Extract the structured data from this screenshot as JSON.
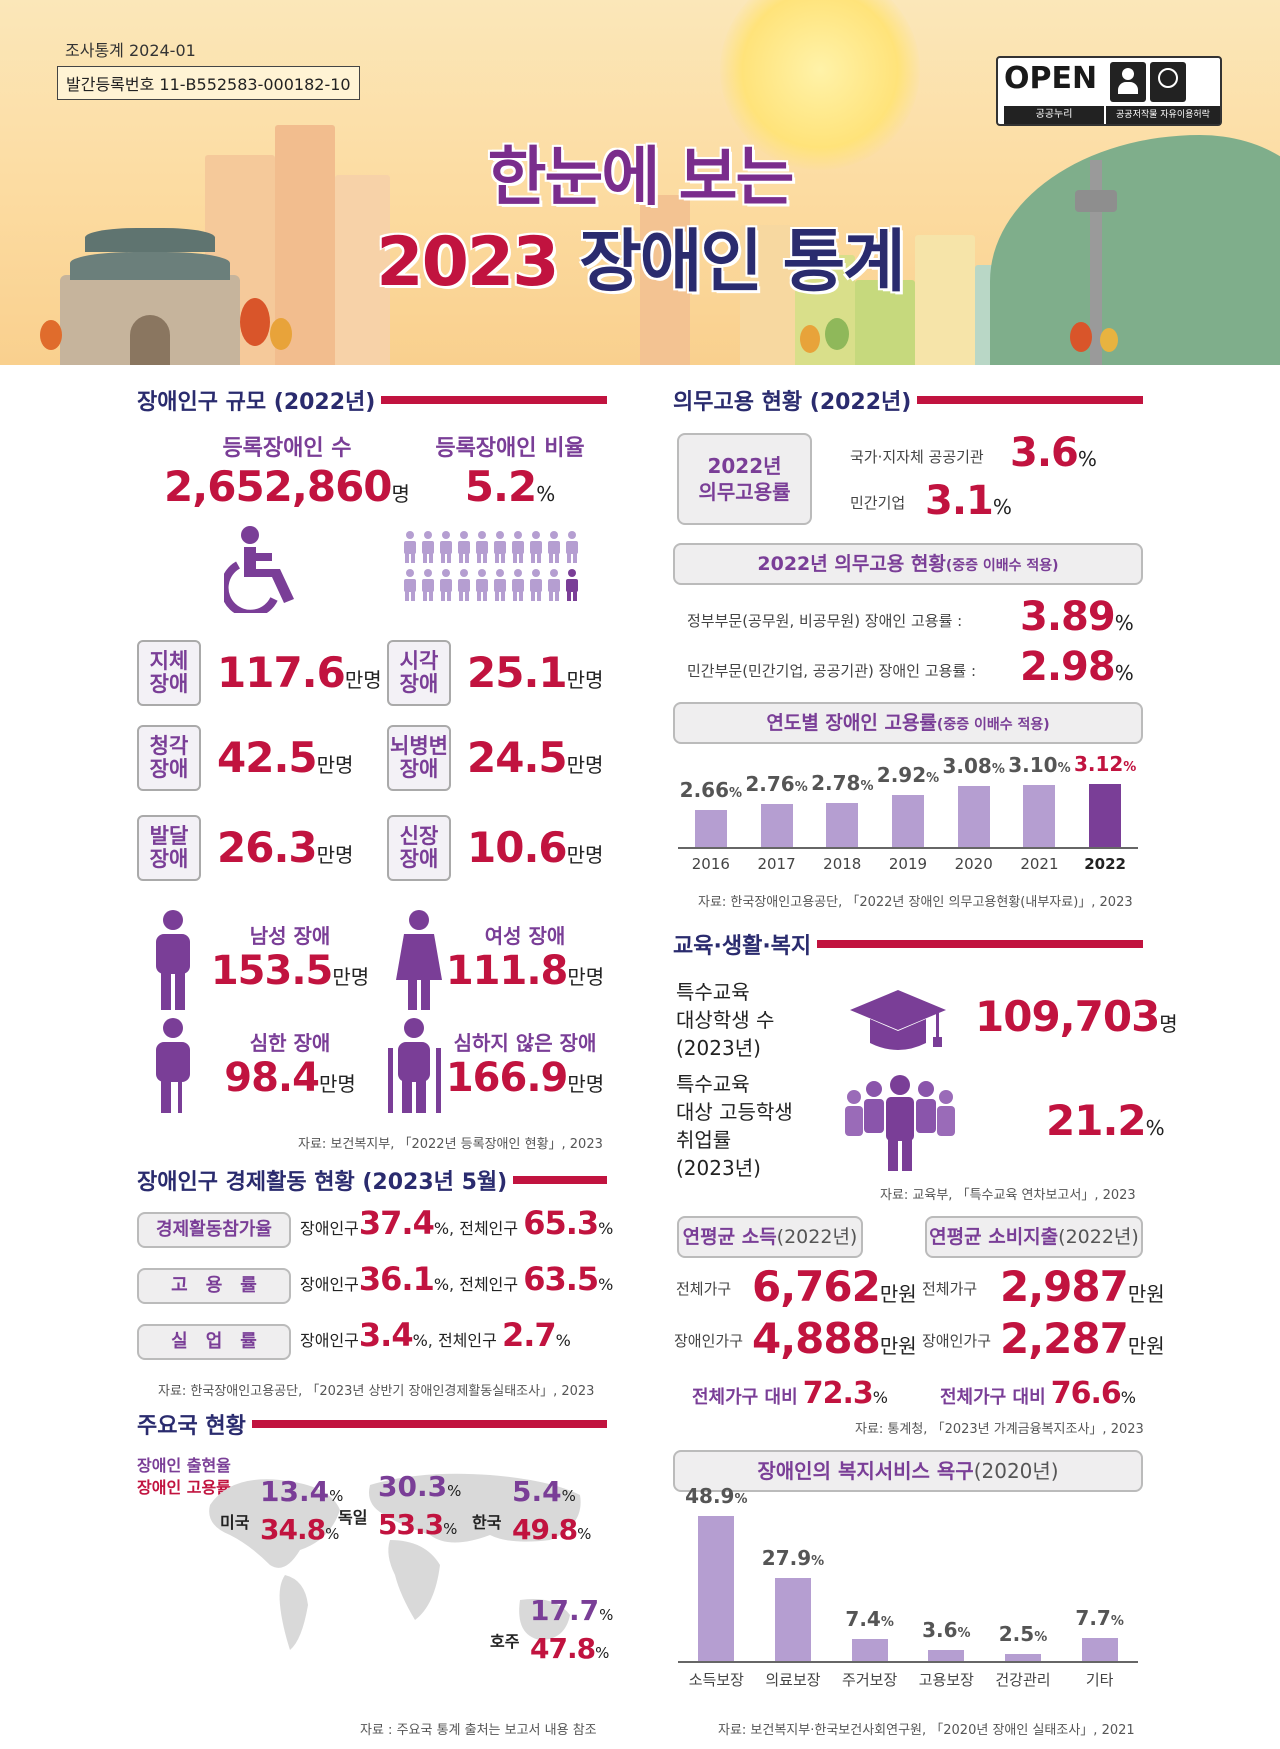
{
  "meta": {
    "series": "조사통계 2024-01",
    "reg": "발간등록번호 11-B552583-000182-10",
    "open": "OPEN",
    "open_sub1": "공공누리",
    "open_sub2": "공공저작물 자유이용허락",
    "open_b1": "출처표시",
    "open_b2": "상업용금지"
  },
  "title": {
    "line1": "한눈에 보는",
    "year": "2023",
    "rest": "장애인 통계"
  },
  "population": {
    "head": "장애인구 규모 (2022년)",
    "reg_label": "등록장애인 수",
    "reg_value": "2,652,860",
    "reg_unit": "명",
    "ratio_label": "등록장애인 비율",
    "ratio_value": "5.2",
    "ratio_unit": "%",
    "types": [
      {
        "tag1": "지체",
        "tag2": "장애",
        "value": "117.6",
        "unit": "만명"
      },
      {
        "tag1": "시각",
        "tag2": "장애",
        "value": "25.1",
        "unit": "만명"
      },
      {
        "tag1": "청각",
        "tag2": "장애",
        "value": "42.5",
        "unit": "만명"
      },
      {
        "tag1": "뇌병변",
        "tag2": "장애",
        "value": "24.5",
        "unit": "만명"
      },
      {
        "tag1": "발달",
        "tag2": "장애",
        "value": "26.3",
        "unit": "만명"
      },
      {
        "tag1": "신장",
        "tag2": "장애",
        "value": "10.6",
        "unit": "만명"
      }
    ],
    "male_label": "남성 장애",
    "male_value": "153.5",
    "female_label": "여성 장애",
    "female_value": "111.8",
    "severe_label": "심한 장애",
    "severe_value": "98.4",
    "mild_label": "심하지 않은 장애",
    "mild_value": "166.9",
    "unit": "만명",
    "source": "자료: 보건복지부, 「2022년 등록장애인 현황」, 2023"
  },
  "economic": {
    "head": "장애인구 경제활동 현황 (2023년 5월)",
    "rows": [
      {
        "tag": "경제활동참가율",
        "dis_label": "장애인구",
        "dis": "37.4",
        "all_label": "전체인구",
        "all": "65.3"
      },
      {
        "tag": "고　용　률",
        "dis_label": "장애인구",
        "dis": "36.1",
        "all_label": "전체인구",
        "all": "63.5"
      },
      {
        "tag": "실　업　률",
        "dis_label": "장애인구",
        "dis": "3.4",
        "all_label": "전체인구",
        "all": "2.7"
      }
    ],
    "pct": "%",
    "source": "자료: 한국장애인고용공단, 「2023년 상반기 장애인경제활동실태조사」, 2023"
  },
  "countries": {
    "head": "주요국 현황",
    "legend1": "장애인 출현율",
    "legend2": "장애인 고용률",
    "items": [
      {
        "name": "미국",
        "a": "13.4",
        "b": "34.8"
      },
      {
        "name": "독일",
        "a": "30.3",
        "b": "53.3"
      },
      {
        "name": "한국",
        "a": "5.4",
        "b": "49.8"
      },
      {
        "name": "호주",
        "a": "17.7",
        "b": "47.8"
      }
    ],
    "pct": "%",
    "source": "자료 : 주요국 통계 출처는 보고서 내용 참조"
  },
  "quota": {
    "head": "의무고용 현황 (2022년)",
    "box1": "2022년",
    "box2": "의무고용률",
    "pub_label": "국가·지자체 공공기관",
    "pub_value": "3.6",
    "priv_label": "민간기업",
    "priv_value": "3.1",
    "pct": "%",
    "status_head": "2022년 의무고용 현황",
    "status_sub": "(중증 이배수 적용)",
    "gov_label": "정부부문(공무원, 비공무원) 장애인 고용률 :",
    "gov_value": "3.89",
    "civ_label": "민간부문(민간기업, 공공기관) 장애인 고용률 :",
    "civ_value": "2.98",
    "trend_head": "연도별 장애인 고용률",
    "trend_sub": "(중증 이배수 적용)",
    "source": "자료: 한국장애인고용공단, 「2022년 장애인 의무고용현황(내부자료)」, 2023"
  },
  "chart_data": [
    {
      "type": "bar",
      "title": "연도별 장애인 고용률(중증 이배수 적용)",
      "categories": [
        "2016",
        "2017",
        "2018",
        "2019",
        "2020",
        "2021",
        "2022"
      ],
      "values": [
        2.66,
        2.76,
        2.78,
        2.92,
        3.08,
        3.1,
        3.12
      ],
      "labels": [
        "2.66",
        "2.76",
        "2.78",
        "2.92",
        "3.08",
        "3.10",
        "3.12"
      ],
      "unit": "%",
      "highlight": "2022",
      "colors": {
        "bar": "#b59ed1",
        "highlight": "#7a3e97"
      }
    },
    {
      "type": "bar",
      "title": "장애인의 복지서비스 욕구(2020년)",
      "categories": [
        "소득보장",
        "의료보장",
        "주거보장",
        "고용보장",
        "건강관리",
        "기타"
      ],
      "values": [
        48.9,
        27.9,
        7.4,
        3.6,
        2.5,
        7.7
      ],
      "labels": [
        "48.9",
        "27.9",
        "7.4",
        "3.6",
        "2.5",
        "7.7"
      ],
      "unit": "%",
      "colors": {
        "bar": "#b59ed1"
      }
    }
  ],
  "education": {
    "head": "교육·생활·복지",
    "s1": "특수교육",
    "s2": "대상학생 수",
    "s3": "(2023년)",
    "students": "109,703",
    "students_unit": "명",
    "e1": "특수교육",
    "e2": "대상 고등학생",
    "e3": "취업률",
    "e4": "(2023년)",
    "employ": "21.2",
    "employ_unit": "%",
    "source": "자료: 교육부, 「특수교육 연차보고서」, 2023"
  },
  "income": {
    "head": "연평균 소득",
    "head_yr": "(2022년)",
    "all_label": "전체가구",
    "all": "6,762",
    "dis_label": "장애인가구",
    "dis": "4,888",
    "unit": "만원",
    "ratio_label": "전체가구 대비",
    "ratio": "72.3"
  },
  "spend": {
    "head": "연평균 소비지출",
    "head_yr": "(2022년)",
    "all_label": "전체가구",
    "all": "2,987",
    "dis_label": "장애인가구",
    "dis": "2,287",
    "unit": "만원",
    "ratio_label": "전체가구 대비",
    "ratio": "76.6"
  },
  "household_source": "자료: 통계청, 「2023년 가계금융복지조사」, 2023",
  "welfare": {
    "head": "장애인의 복지서비스 욕구",
    "head_yr": "(2020년)",
    "source": "자료: 보건복지부·한국보건사회연구원, 「2020년 장애인 실태조사」, 2021"
  }
}
